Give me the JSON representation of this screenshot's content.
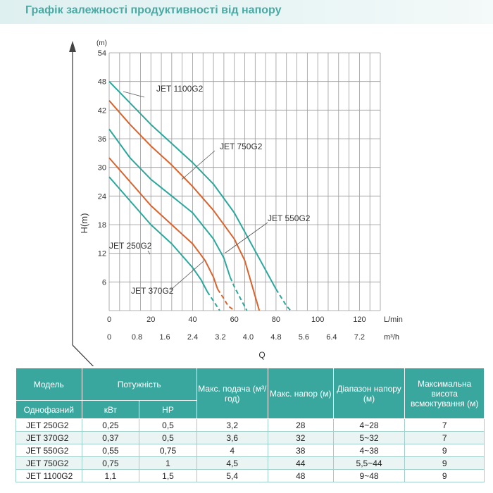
{
  "page_title": "Графік залежності продуктивності від напору",
  "chart_data": {
    "type": "line",
    "y_unit": "(m)",
    "ylabel": "H(m)",
    "xlabel": "Q",
    "x_unit_primary": "L/min",
    "x_unit_secondary": "m³/h",
    "ylim": [
      0,
      54
    ],
    "xlim": [
      0,
      130
    ],
    "y_ticks": [
      6,
      12,
      18,
      24,
      30,
      36,
      42,
      48,
      54
    ],
    "x_ticks": [
      0,
      20,
      40,
      60,
      80,
      100,
      120
    ],
    "x_ticks_secondary": [
      "0",
      "0.8",
      "1.6",
      "2.4",
      "3.2",
      "4.0",
      "4.8",
      "5.6",
      "6.4",
      "7.2"
    ],
    "grid": true,
    "series": [
      {
        "name": "JET 1100G2",
        "color": "#2ba79c",
        "x": [
          0,
          10,
          20,
          30,
          40,
          50,
          60,
          65,
          70,
          75,
          80,
          85,
          87
        ],
        "y": [
          48,
          43.5,
          39,
          35,
          31,
          26.5,
          20.5,
          16.5,
          12.5,
          8.5,
          4.5,
          1,
          0
        ],
        "dashed_from_x": 84
      },
      {
        "name": "JET 750G2",
        "color": "#d8632e",
        "x": [
          0,
          10,
          20,
          30,
          40,
          50,
          60,
          65,
          68,
          70,
          72
        ],
        "y": [
          44,
          39,
          34.5,
          30.5,
          26,
          21,
          15,
          10.5,
          6,
          3,
          0
        ],
        "dashed_from_x": 100
      },
      {
        "name": "JET 550G2",
        "color": "#2ba79c",
        "x": [
          0,
          10,
          20,
          30,
          40,
          50,
          55,
          58,
          60,
          63,
          66
        ],
        "y": [
          38,
          32,
          27.5,
          24,
          20.5,
          15,
          11,
          7,
          5,
          2.5,
          0
        ],
        "dashed_from_x": 59
      },
      {
        "name": "JET 370G2",
        "color": "#d8632e",
        "x": [
          0,
          10,
          20,
          30,
          40,
          46,
          50,
          52,
          55,
          57,
          60
        ],
        "y": [
          32,
          27,
          22,
          18,
          14,
          10.5,
          7,
          4.5,
          2.5,
          1,
          0
        ],
        "dashed_from_x": 53
      },
      {
        "name": "JET 250G2",
        "color": "#2ba79c",
        "x": [
          0,
          10,
          20,
          30,
          40,
          44,
          47,
          50,
          53
        ],
        "y": [
          28,
          23,
          18,
          14,
          9,
          6.5,
          4,
          2,
          0
        ],
        "dashed_from_x": 48
      }
    ]
  },
  "table": {
    "header": {
      "model": "Модель",
      "power": "Потужність",
      "max_flow": "Макс. подача (м³/год)",
      "max_head": "Макс. напор (м)",
      "head_range": "Діапазон напору (м)",
      "max_suction": "Максимальна висота всмоктування (м)",
      "single_phase": "Однофазний",
      "kw": "кВт",
      "hp": "HP"
    },
    "rows": [
      {
        "model": "JET 250G2",
        "kw": "0,25",
        "hp": "0,5",
        "flow": "3,2",
        "head": "28",
        "range": "4~28",
        "suction": "7"
      },
      {
        "model": "JET 370G2",
        "kw": "0,37",
        "hp": "0,5",
        "flow": "3,6",
        "head": "32",
        "range": "5~32",
        "suction": "7"
      },
      {
        "model": "JET 550G2",
        "kw": "0,55",
        "hp": "0,75",
        "flow": "4",
        "head": "38",
        "range": "4~38",
        "suction": "9"
      },
      {
        "model": "JET 750G2",
        "kw": "0,75",
        "hp": "1",
        "flow": "4,5",
        "head": "44",
        "range": "5,5~44",
        "suction": "9"
      },
      {
        "model": "JET 1100G2",
        "kw": "1,1",
        "hp": "1,5",
        "flow": "5,4",
        "head": "48",
        "range": "9~48",
        "suction": "9"
      }
    ]
  }
}
